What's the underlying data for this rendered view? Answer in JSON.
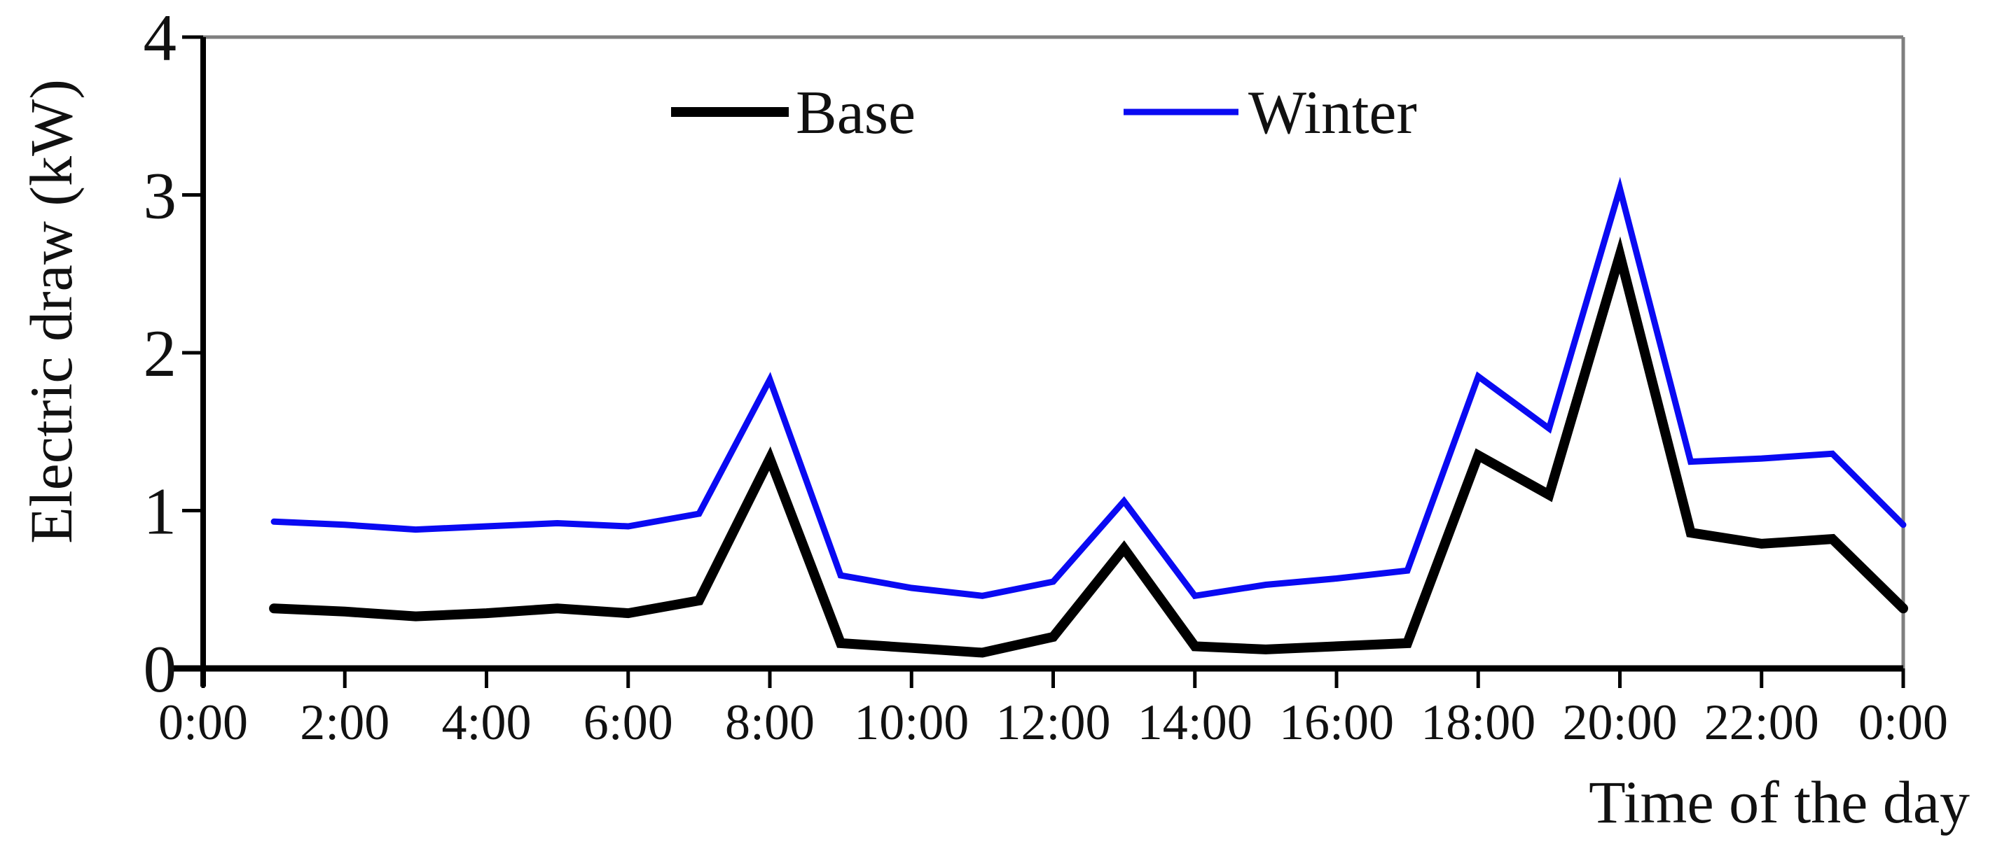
{
  "chart_data": {
    "type": "line",
    "title": "",
    "xlabel": "Time of the day",
    "ylabel": "Electric draw (kW)",
    "grid": false,
    "legend_position": "top-center-inside",
    "xlim_hours": [
      0,
      24
    ],
    "ylim": [
      0,
      4
    ],
    "x_hours": [
      1,
      2,
      3,
      4,
      5,
      6,
      7,
      8,
      9,
      10,
      11,
      12,
      13,
      14,
      15,
      16,
      17,
      18,
      19,
      20,
      21,
      22,
      23,
      24
    ],
    "x_tick_hours": [
      0,
      2,
      4,
      6,
      8,
      10,
      12,
      14,
      16,
      18,
      20,
      22,
      24
    ],
    "x_tick_labels": [
      "0:00",
      "2:00",
      "4:00",
      "6:00",
      "8:00",
      "10:00",
      "12:00",
      "14:00",
      "16:00",
      "18:00",
      "20:00",
      "22:00",
      "0:00"
    ],
    "y_tick_values": [
      0,
      1,
      2,
      3,
      4
    ],
    "y_tick_labels": [
      "0",
      "1",
      "2",
      "3",
      "4"
    ],
    "series": [
      {
        "name": "Base",
        "color": "#000000",
        "stroke_width": 14,
        "values": [
          0.38,
          0.36,
          0.33,
          0.35,
          0.38,
          0.35,
          0.43,
          1.33,
          0.16,
          0.13,
          0.1,
          0.2,
          0.76,
          0.14,
          0.12,
          0.14,
          0.16,
          1.35,
          1.1,
          2.62,
          0.86,
          0.79,
          0.82,
          0.38
        ]
      },
      {
        "name": "Winter",
        "color": "#0a0af2",
        "stroke_width": 9,
        "values": [
          0.93,
          0.91,
          0.88,
          0.9,
          0.92,
          0.9,
          0.98,
          1.83,
          0.59,
          0.51,
          0.46,
          0.55,
          1.06,
          0.46,
          0.53,
          0.57,
          0.62,
          1.85,
          1.52,
          3.04,
          1.31,
          1.33,
          1.36,
          0.91
        ]
      }
    ]
  },
  "colors": {
    "background": "#ffffff",
    "axis": "#000000",
    "plot_border": "#7f7f7f",
    "text": "#111111",
    "base_line": "#000000",
    "winter_line": "#0a0af2"
  }
}
